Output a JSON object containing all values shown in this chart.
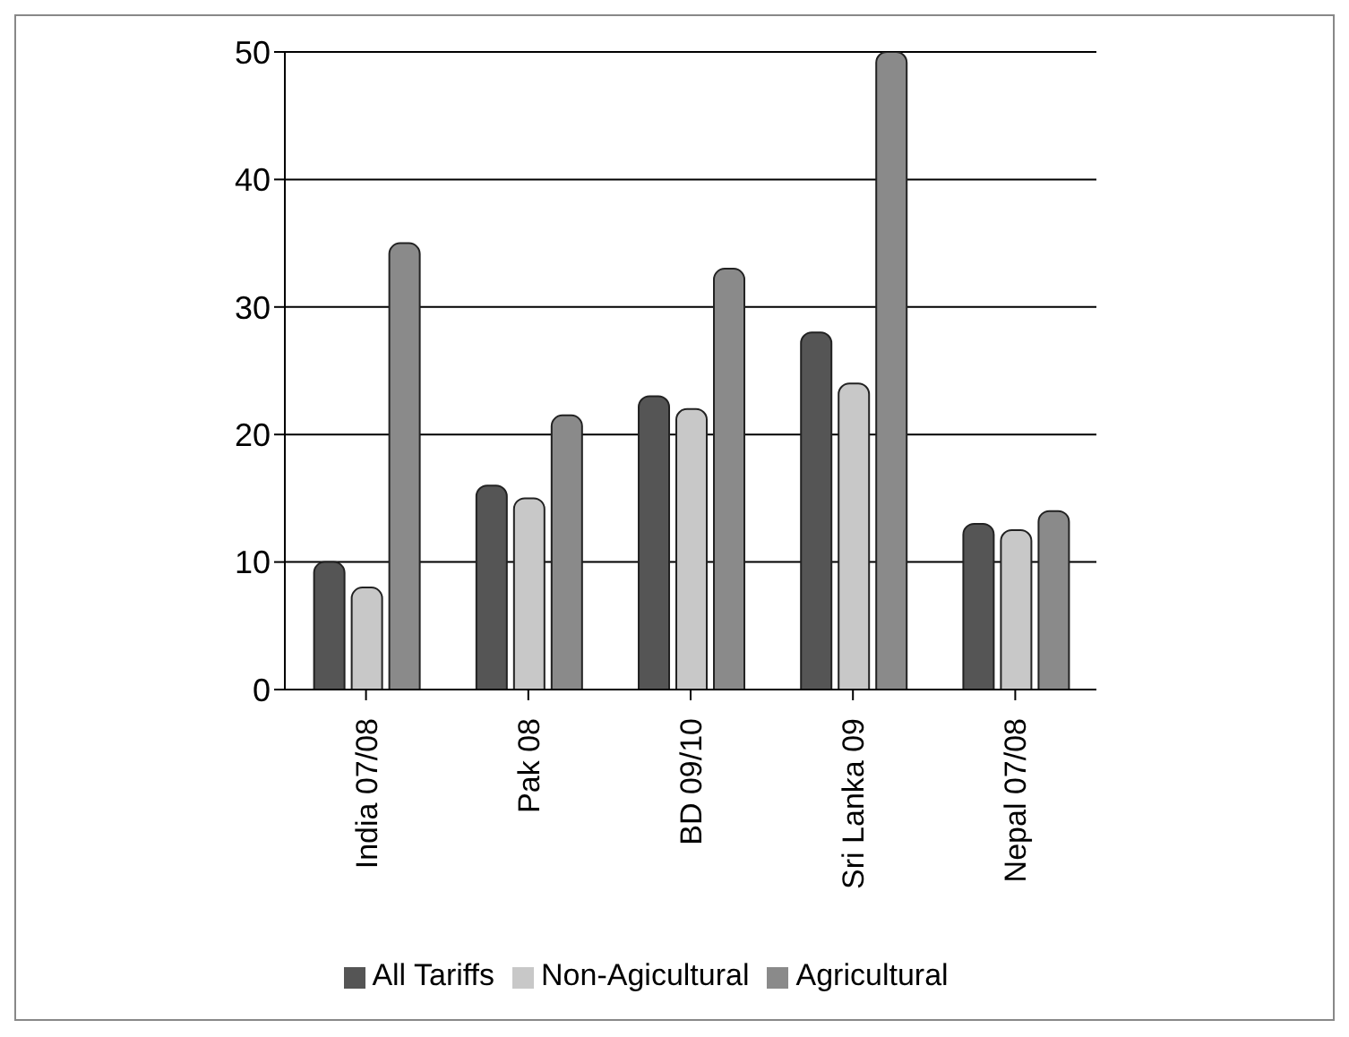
{
  "chart_data": {
    "type": "bar",
    "categories": [
      "India 07/08",
      "Pak 08",
      "BD 09/10",
      "Sri Lanka 09",
      "Nepal 07/08"
    ],
    "series": [
      {
        "name": "All Tariffs",
        "color": "#555555",
        "values": [
          10,
          16,
          23,
          28,
          13
        ]
      },
      {
        "name": "Non-Agicultural",
        "color": "#c8c8c8",
        "values": [
          8,
          15,
          22,
          24,
          12.5
        ]
      },
      {
        "name": "Agricultural",
        "color": "#8a8a8a",
        "values": [
          35,
          21.5,
          33,
          50,
          14
        ]
      }
    ],
    "ylim": [
      0,
      50
    ],
    "yticks": [
      0,
      10,
      20,
      30,
      40,
      50
    ],
    "grid": "y",
    "legend": "bottom"
  }
}
